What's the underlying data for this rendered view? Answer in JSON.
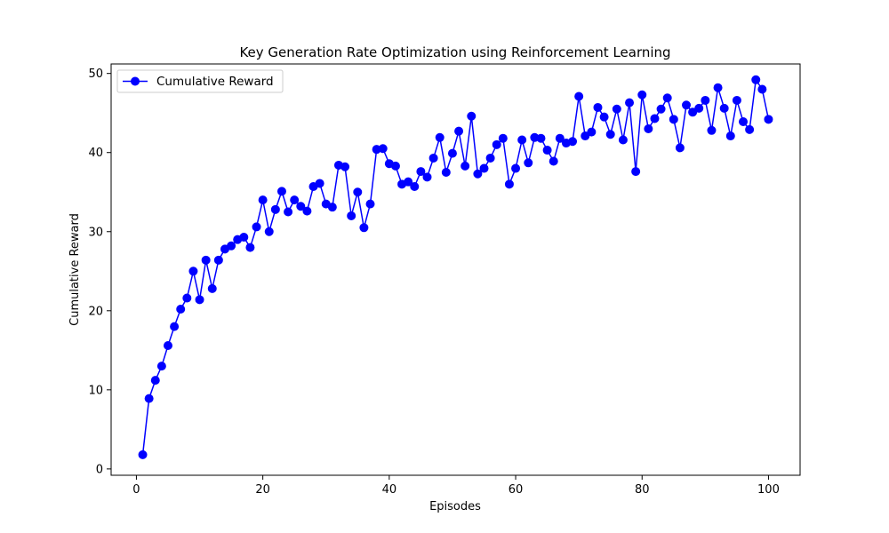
{
  "colors": {
    "series": "#0000ff",
    "axes": "#000000",
    "background": "#ffffff"
  },
  "chart_data": {
    "type": "line",
    "title": "Key Generation Rate Optimization using Reinforcement Learning",
    "xlabel": "Episodes",
    "ylabel": "Cumulative Reward",
    "xlim": [
      -4,
      105
    ],
    "ylim": [
      -0.8,
      51.2
    ],
    "xticks": [
      0,
      20,
      40,
      60,
      80,
      100
    ],
    "yticks": [
      0,
      10,
      20,
      30,
      40,
      50
    ],
    "grid": false,
    "legend": {
      "position": "top-left",
      "entries": [
        "Cumulative Reward"
      ]
    },
    "x": [
      1,
      2,
      3,
      4,
      5,
      6,
      7,
      8,
      9,
      10,
      11,
      12,
      13,
      14,
      15,
      16,
      17,
      18,
      19,
      20,
      21,
      22,
      23,
      24,
      25,
      26,
      27,
      28,
      29,
      30,
      31,
      32,
      33,
      34,
      35,
      36,
      37,
      38,
      39,
      40,
      41,
      42,
      43,
      44,
      45,
      46,
      47,
      48,
      49,
      50,
      51,
      52,
      53,
      54,
      55,
      56,
      57,
      58,
      59,
      60,
      61,
      62,
      63,
      64,
      65,
      66,
      67,
      68,
      69,
      70,
      71,
      72,
      73,
      74,
      75,
      76,
      77,
      78,
      79,
      80,
      81,
      82,
      83,
      84,
      85,
      86,
      87,
      88,
      89,
      90,
      91,
      92,
      93,
      94,
      95,
      96,
      97,
      98,
      99,
      100
    ],
    "series": [
      {
        "name": "Cumulative Reward",
        "marker": "circle",
        "values": [
          1.8,
          8.9,
          11.2,
          13.0,
          15.6,
          18.0,
          20.2,
          21.6,
          25.0,
          21.4,
          26.4,
          22.8,
          26.4,
          27.8,
          28.2,
          29.0,
          29.3,
          28.0,
          30.6,
          34.0,
          30.0,
          32.8,
          35.1,
          32.5,
          34.0,
          33.2,
          32.6,
          35.7,
          36.1,
          33.5,
          33.1,
          38.4,
          38.2,
          32.0,
          35.0,
          30.5,
          33.5,
          40.4,
          40.5,
          38.6,
          38.3,
          36.0,
          36.3,
          35.7,
          37.6,
          36.9,
          39.3,
          41.9,
          37.5,
          39.9,
          42.7,
          38.3,
          44.6,
          37.3,
          38.0,
          39.3,
          41.0,
          41.8,
          36.0,
          38.0,
          41.6,
          38.7,
          41.9,
          41.8,
          40.3,
          38.9,
          41.8,
          41.2,
          41.4,
          47.1,
          42.1,
          42.6,
          45.7,
          44.5,
          42.3,
          45.5,
          41.6,
          46.3,
          37.6,
          47.3,
          43.0,
          44.3,
          45.5,
          46.9,
          44.2,
          40.6,
          46.0,
          45.1,
          45.6,
          46.6,
          42.8,
          48.2,
          45.6,
          42.1,
          46.6,
          43.9,
          42.9,
          49.2,
          48.0,
          44.2
        ]
      }
    ]
  }
}
